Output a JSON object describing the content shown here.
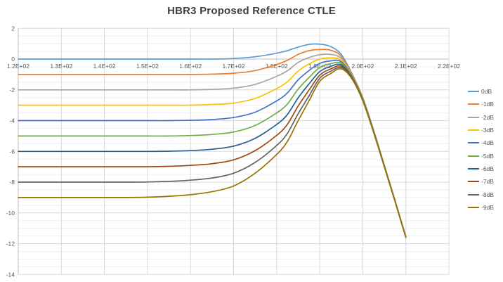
{
  "title": "HBR3 Proposed Reference CTLE",
  "styles": {
    "title_color": "#404040",
    "label_color": "#595959",
    "major_grid_color": "#D9D9D9",
    "minor_grid_color": "#EFEFEF",
    "axis_line_color": "#BFBFBF",
    "background": "#FFFFFF"
  },
  "chart_data": {
    "type": "line",
    "title": "HBR3 Proposed Reference CTLE",
    "xlabel": "",
    "ylabel": "",
    "xlim": [
      120,
      220
    ],
    "ylim": [
      -14,
      2
    ],
    "x_tick_values": [
      120,
      130,
      140,
      150,
      160,
      170,
      180,
      190,
      200,
      210,
      220
    ],
    "x_tick_labels": [
      "1.2E+02",
      "1.3E+02",
      "1.4E+02",
      "1.5E+02",
      "1.6E+02",
      "1.7E+02",
      "1.8E+02",
      "1.9E+02",
      "2.0E+02",
      "2.1E+02",
      "2.2E+02"
    ],
    "y_tick_values": [
      2,
      0,
      -2,
      -4,
      -6,
      -8,
      -10,
      -12,
      -14
    ],
    "y_minor_step": 0.5,
    "grid": true,
    "legend_position": "right",
    "x": [
      120,
      125,
      130,
      135,
      140,
      145,
      150,
      155,
      160,
      165,
      170,
      175,
      180,
      182.5,
      185,
      187.5,
      190,
      192.5,
      195,
      197.5,
      200,
      202.5,
      205,
      207.5,
      210
    ],
    "series": [
      {
        "name": "0dB",
        "color": "#5B9BD5",
        "values": [
          0,
          0,
          0,
          0,
          0,
          0,
          0,
          0,
          0,
          0,
          0.04,
          0.15,
          0.38,
          0.55,
          0.78,
          0.95,
          0.97,
          0.82,
          0.3,
          -0.95,
          -2.5,
          -4.6,
          -6.9,
          -9.2,
          -11.55
        ]
      },
      {
        "name": "-1dB",
        "color": "#ED7D31",
        "values": [
          -1,
          -1,
          -1,
          -1,
          -1,
          -1,
          -1,
          -1,
          -1,
          -0.98,
          -0.92,
          -0.75,
          -0.35,
          -0.08,
          0.3,
          0.55,
          0.62,
          0.58,
          0.18,
          -1.0,
          -2.53,
          -4.62,
          -6.91,
          -9.21,
          -11.56
        ]
      },
      {
        "name": "-2dB",
        "color": "#A5A5A5",
        "values": [
          -2,
          -2,
          -2,
          -2,
          -2,
          -2,
          -2,
          -2,
          -2,
          -1.97,
          -1.89,
          -1.65,
          -1.12,
          -0.76,
          -0.22,
          0.1,
          0.28,
          0.3,
          0.05,
          -1.04,
          -2.56,
          -4.64,
          -6.92,
          -9.22,
          -11.56
        ]
      },
      {
        "name": "-3dB",
        "color": "#FFC000",
        "values": [
          -3,
          -3,
          -3,
          -3,
          -3,
          -3,
          -3,
          -3,
          -3,
          -2.95,
          -2.86,
          -2.56,
          -1.92,
          -1.48,
          -0.78,
          -0.32,
          0.0,
          0.08,
          -0.08,
          -1.08,
          -2.59,
          -4.66,
          -6.93,
          -9.23,
          -11.57
        ]
      },
      {
        "name": "-4dB",
        "color": "#4472C4",
        "values": [
          -4,
          -4,
          -4,
          -4,
          -4,
          -4,
          -4,
          -4,
          -3.98,
          -3.93,
          -3.8,
          -3.45,
          -2.72,
          -2.2,
          -1.35,
          -0.75,
          -0.28,
          -0.12,
          -0.18,
          -1.12,
          -2.62,
          -4.68,
          -6.94,
          -9.24,
          -11.57
        ]
      },
      {
        "name": "-5dB",
        "color": "#70AD47",
        "values": [
          -5,
          -5,
          -5,
          -5,
          -5,
          -5,
          -5,
          -5,
          -4.97,
          -4.9,
          -4.74,
          -4.32,
          -3.5,
          -2.92,
          -1.95,
          -1.2,
          -0.55,
          -0.3,
          -0.28,
          -1.16,
          -2.64,
          -4.7,
          -6.95,
          -9.24,
          -11.58
        ]
      },
      {
        "name": "-6dB",
        "color": "#255E91",
        "values": [
          -6,
          -6,
          -6,
          -6,
          -6,
          -6,
          -6,
          -5.99,
          -5.95,
          -5.86,
          -5.66,
          -5.15,
          -4.25,
          -3.6,
          -2.52,
          -1.62,
          -0.82,
          -0.48,
          -0.38,
          -1.2,
          -2.66,
          -4.72,
          -6.96,
          -9.25,
          -11.58
        ]
      },
      {
        "name": "-7dB",
        "color": "#9E480E",
        "values": [
          -7,
          -7,
          -7,
          -7,
          -7,
          -7,
          -7,
          -6.97,
          -6.91,
          -6.8,
          -6.55,
          -5.95,
          -4.96,
          -4.24,
          -3.05,
          -2.02,
          -1.05,
          -0.65,
          -0.47,
          -1.23,
          -2.68,
          -4.73,
          -6.97,
          -9.25,
          -11.59
        ]
      },
      {
        "name": "-8dB",
        "color": "#636363",
        "values": [
          -8,
          -8,
          -8,
          -8,
          -8,
          -8,
          -7.99,
          -7.95,
          -7.87,
          -7.73,
          -7.42,
          -6.72,
          -5.62,
          -4.83,
          -3.55,
          -2.4,
          -1.25,
          -0.8,
          -0.55,
          -1.26,
          -2.7,
          -4.74,
          -6.98,
          -9.26,
          -11.59
        ]
      },
      {
        "name": "-9dB",
        "color": "#997300",
        "values": [
          -9,
          -9,
          -9,
          -9,
          -9,
          -9,
          -8.98,
          -8.92,
          -8.82,
          -8.62,
          -8.25,
          -7.42,
          -6.2,
          -5.35,
          -4.0,
          -2.72,
          -1.45,
          -0.95,
          -0.63,
          -1.3,
          -2.72,
          -4.75,
          -6.99,
          -9.26,
          -11.6
        ]
      }
    ]
  }
}
